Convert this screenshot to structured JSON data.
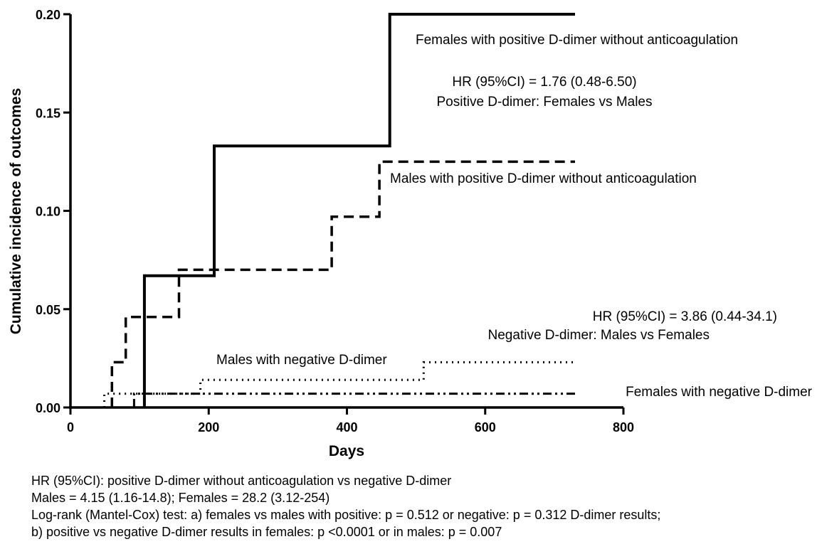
{
  "chart_data": {
    "type": "line",
    "step": true,
    "xlabel": "Days",
    "ylabel": "Cumulative incidence of outcomes",
    "xlim": [
      0,
      800
    ],
    "ylim": [
      0,
      0.2
    ],
    "x_ticks": [
      "0",
      "200",
      "400",
      "600",
      "800"
    ],
    "y_ticks": [
      "0.00",
      "0.05",
      "0.10",
      "0.15",
      "0.20"
    ],
    "grid": false,
    "series": [
      {
        "name": "Females with positive D-dimer without anticoagulation",
        "line_style": "solid",
        "x": [
          107,
          107,
          208,
          208,
          462,
          462,
          730
        ],
        "y": [
          0,
          0.067,
          0.067,
          0.133,
          0.133,
          0.2,
          0.2
        ]
      },
      {
        "name": "Males with positive D-dimer without anticoagulation",
        "line_style": "dashed",
        "x": [
          60,
          60,
          80,
          80,
          157,
          157,
          378,
          378,
          447,
          447,
          730
        ],
        "y": [
          0,
          0.023,
          0.023,
          0.046,
          0.046,
          0.07,
          0.07,
          0.097,
          0.097,
          0.125,
          0.125
        ]
      },
      {
        "name": "Males with negative D-dimer",
        "line_style": "dotted",
        "x": [
          49,
          49,
          188,
          188,
          511,
          511,
          730
        ],
        "y": [
          0,
          0.007,
          0.007,
          0.014,
          0.014,
          0.023,
          0.023
        ]
      },
      {
        "name": "Females with negative D-dimer",
        "line_style": "dash-dot-dot",
        "x": [
          92,
          92,
          730
        ],
        "y": [
          0,
          0.007,
          0.007
        ]
      }
    ],
    "annotations": {
      "females_positive_label": "Females with positive D-dimer without anticoagulation",
      "hr_positive_line1": "HR (95%CI) = 1.76 (0.48-6.50)",
      "hr_positive_line2": "Positive D-dimer: Females vs Males",
      "males_positive_label": "Males with positive D-dimer without anticoagulation",
      "hr_negative_line1": "HR (95%CI) = 3.86 (0.44-34.1)",
      "hr_negative_line2": "Negative D-dimer: Males vs Females",
      "males_negative_label": "Males with negative D-dimer",
      "females_negative_label": "Females with negative D-dimer"
    },
    "footnotes": [
      "HR (95%CI): positive D-dimer without anticoagulation vs negative D-dimer",
      "Males = 4.15 (1.16-14.8); Females = 28.2 (3.12-254)",
      "Log-rank (Mantel-Cox) test: a) females vs males with positive: p =  0.512 or negative: p =  0.312 D-dimer results;",
      "b) positive vs negative D-dimer results in females: p <0.0001 or in males: p = 0.007"
    ]
  }
}
